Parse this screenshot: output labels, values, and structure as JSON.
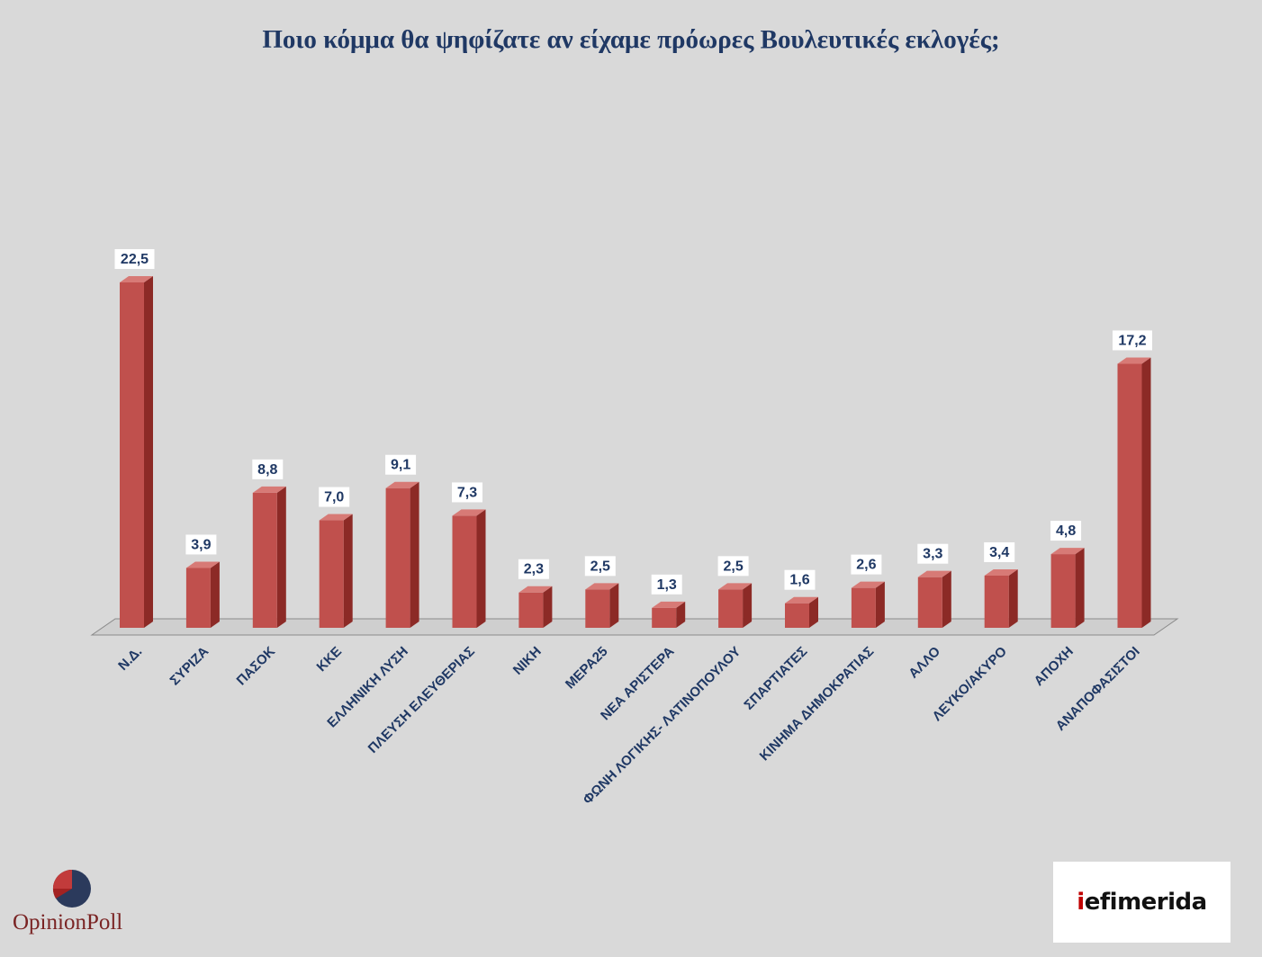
{
  "chart_data": {
    "type": "bar",
    "title": "Ποιο κόμμα θα ψηφίζατε αν είχαμε πρόωρες Βουλευτικές εκλογές;",
    "categories": [
      "Ν.Δ.",
      "ΣΥΡΙΖΑ",
      "ΠΑΣΟΚ",
      "ΚΚΕ",
      "ΕΛΛΗΝΙΚΗ ΛΥΣΗ",
      "ΠΛΕΥΣΗ ΕΛΕΥΘΕΡΙΑΣ",
      "ΝΙΚΗ",
      "ΜΕΡΑ25",
      "ΝΕΑ ΑΡΙΣΤΕΡΑ",
      "ΦΩΝΗ ΛΟΓΙΚΗΣ- ΛΑΤΙΝΟΠΟΥΛΟΥ",
      "ΣΠΑΡΤΙΑΤΕΣ",
      "ΚΙΝΗΜΑ ΔΗΜΟΚΡΑΤΙΑΣ",
      "ΑΛΛΟ",
      "ΛΕΥΚΟ/ΑΚΥΡΟ",
      "ΑΠΟΧΗ",
      "ΑΝΑΠΟΦΑΣΙΣΤΟΙ"
    ],
    "values": [
      22.5,
      3.9,
      8.8,
      7.0,
      9.1,
      7.3,
      2.3,
      2.5,
      1.3,
      2.5,
      1.6,
      2.6,
      3.3,
      3.4,
      4.8,
      17.2
    ],
    "value_labels": [
      "22,5",
      "3,9",
      "8,8",
      "7,0",
      "9,1",
      "7,3",
      "2,3",
      "2,5",
      "1,3",
      "2,5",
      "1,6",
      "2,6",
      "3,3",
      "3,4",
      "4,8",
      "17,2"
    ],
    "xlabel": "",
    "ylabel": "",
    "ylim": [
      0,
      22.5
    ],
    "grid": false,
    "legend": "none",
    "bar_color": "#c0504d"
  },
  "logos": {
    "opinionpoll": "OpinionPoll",
    "iefimerida_prefix": "i",
    "iefimerida_rest": "efimerida"
  },
  "colors": {
    "background": "#d9d9d9",
    "title": "#1f3864",
    "bar_front": "#c0504d",
    "bar_side": "#8c2a26",
    "bar_top": "#d77a76"
  }
}
